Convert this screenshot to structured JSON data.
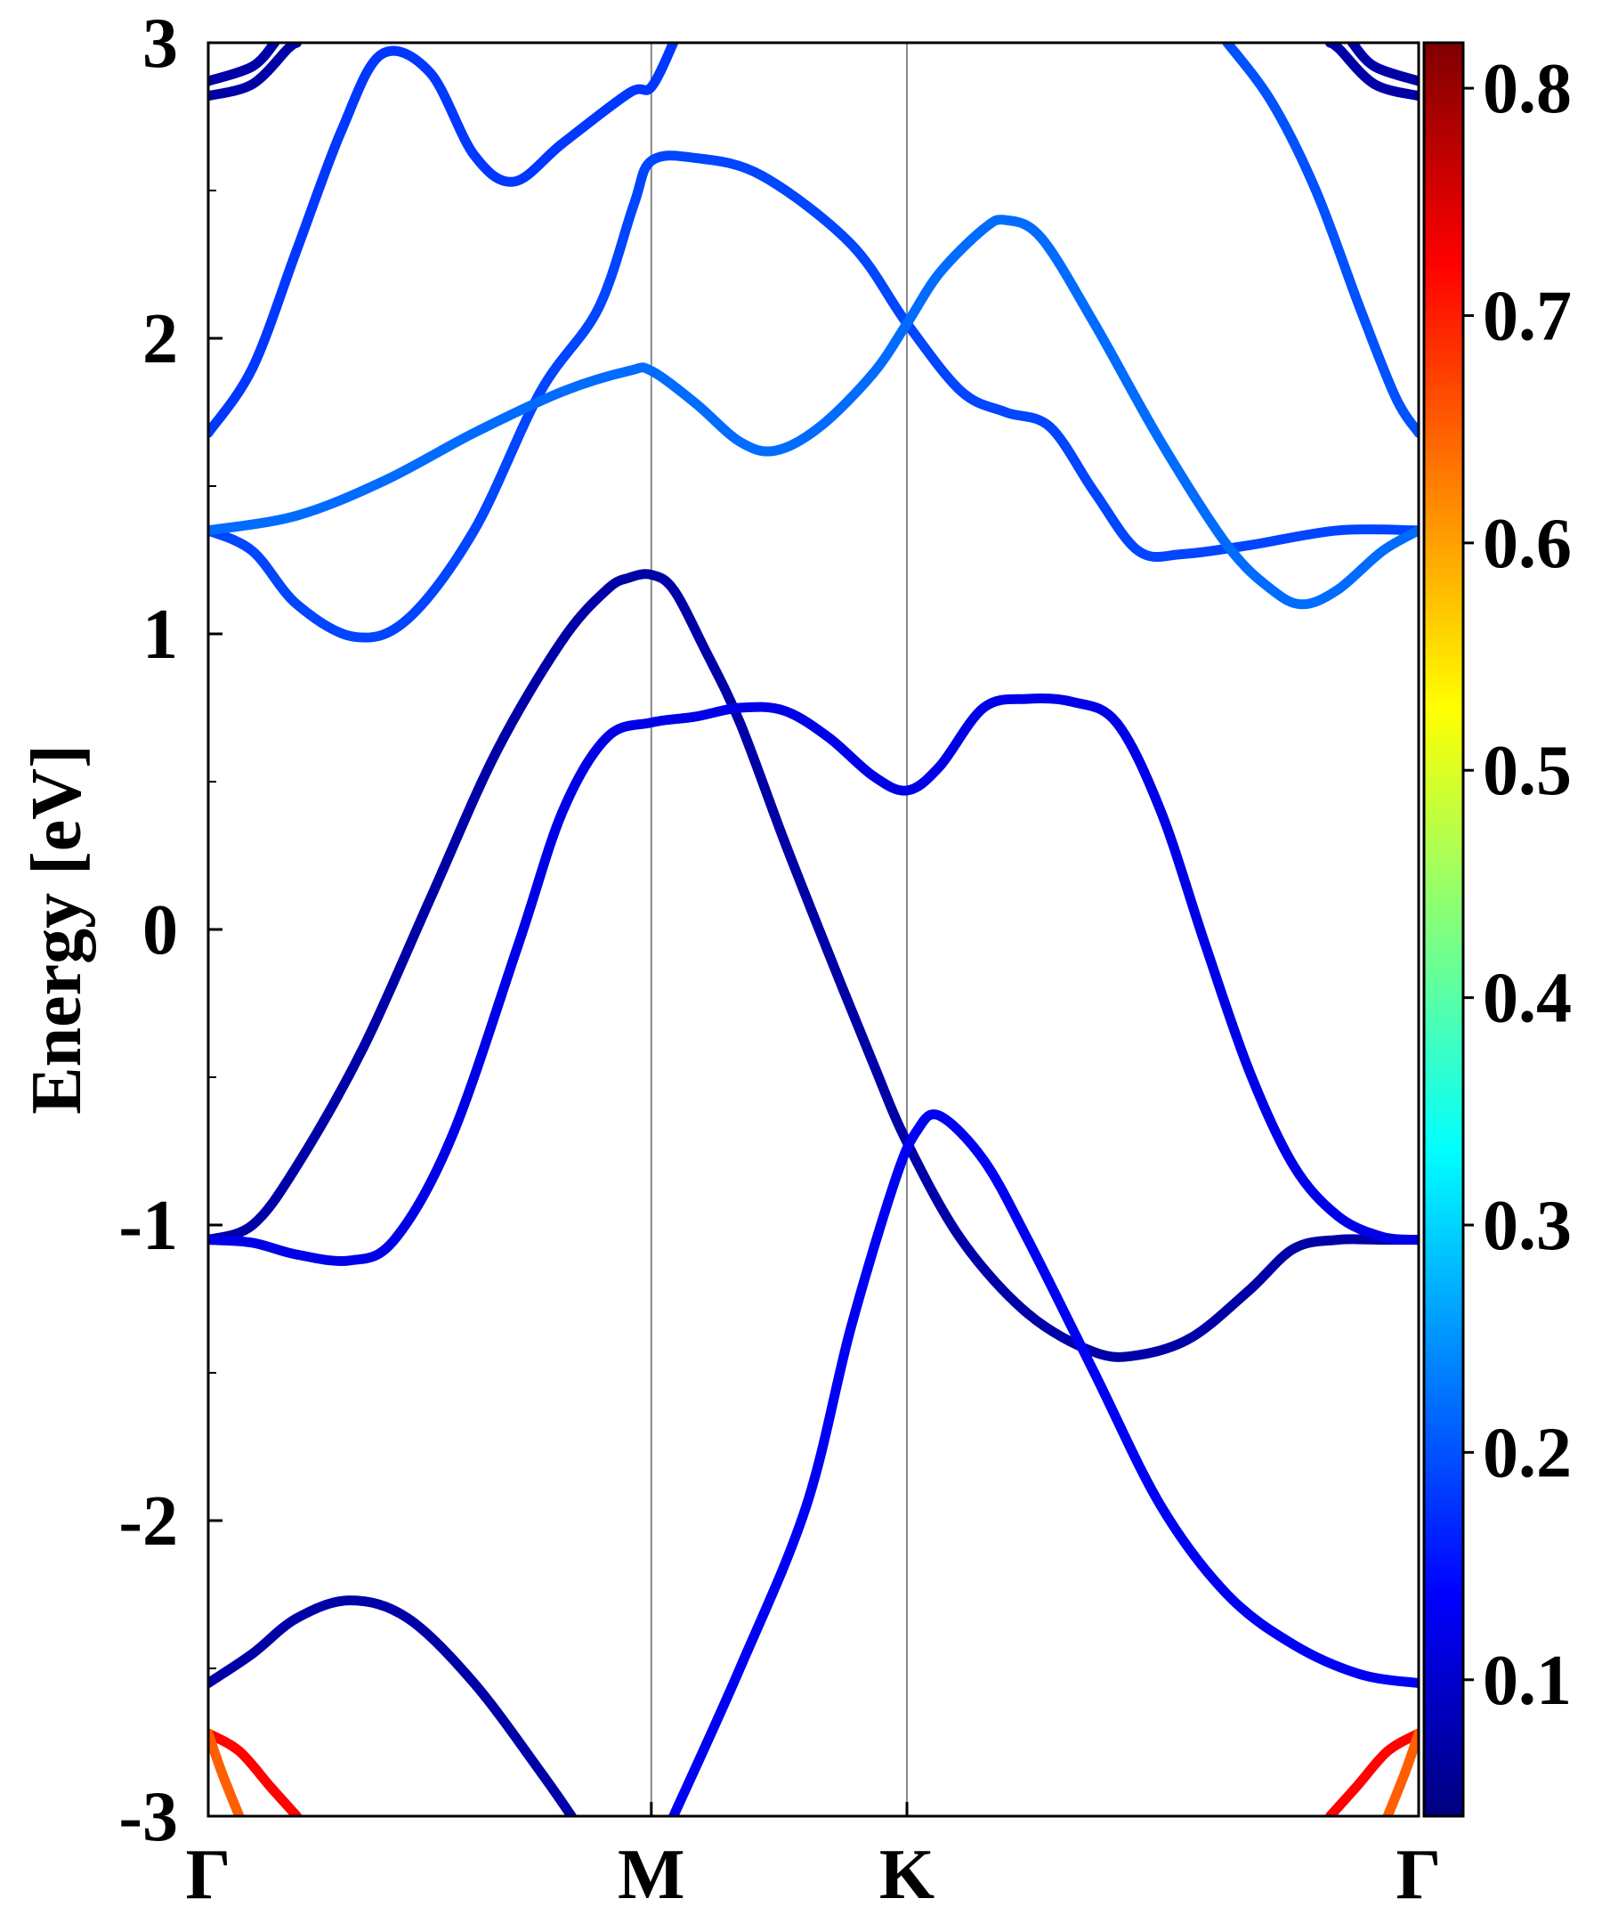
{
  "chart_data": {
    "type": "line",
    "title": "",
    "ylabel": "Energy [eV]",
    "xlabel": "",
    "ylim": [
      -3,
      3
    ],
    "xlim": [
      0,
      2.732
    ],
    "grid": false,
    "yticks": [
      "3",
      "2",
      "1",
      "0",
      "-1",
      "-2",
      "-3"
    ],
    "ytick_values": [
      3,
      2,
      1,
      0,
      -1,
      -2,
      -3
    ],
    "minor_ytick_values": [
      2.5,
      1.5,
      0.5,
      -0.5,
      -1.5,
      -2.5
    ],
    "kpoints": [
      {
        "label": "Γ",
        "x": 0
      },
      {
        "label": "M",
        "x": 1.0
      },
      {
        "label": "K",
        "x": 1.577
      },
      {
        "label": "Γ",
        "x": 2.732
      }
    ],
    "colorbar": {
      "colormap": "jet",
      "range": [
        0.04,
        0.82
      ],
      "ticks": [
        "0.8",
        "0.7",
        "0.6",
        "0.5",
        "0.4",
        "0.3",
        "0.2",
        "0.1"
      ],
      "tick_values": [
        0.8,
        0.7,
        0.6,
        0.5,
        0.4,
        0.3,
        0.2,
        0.1
      ]
    },
    "series": [
      {
        "weight": 0.18,
        "points": [
          [
            0,
            1.68
          ],
          [
            0.1,
            1.9
          ],
          [
            0.2,
            2.3
          ],
          [
            0.3,
            2.7
          ],
          [
            0.39,
            2.96
          ],
          [
            0.5,
            2.9
          ],
          [
            0.6,
            2.62
          ],
          [
            0.69,
            2.53
          ],
          [
            0.8,
            2.66
          ],
          [
            0.95,
            2.83
          ],
          [
            1.0,
            2.85
          ],
          [
            1.05,
            3.0
          ]
        ]
      },
      {
        "weight": 0.19,
        "points": [
          [
            0,
            1.35
          ],
          [
            0.1,
            1.28
          ],
          [
            0.2,
            1.1
          ],
          [
            0.33,
            0.99
          ],
          [
            0.45,
            1.05
          ],
          [
            0.6,
            1.35
          ],
          [
            0.75,
            1.82
          ],
          [
            0.88,
            2.1
          ],
          [
            0.96,
            2.45
          ],
          [
            1.0,
            2.6
          ],
          [
            1.1,
            2.61
          ],
          [
            1.25,
            2.55
          ],
          [
            1.45,
            2.32
          ],
          [
            1.577,
            2.05
          ],
          [
            1.7,
            1.82
          ],
          [
            1.8,
            1.75
          ],
          [
            1.9,
            1.7
          ],
          [
            2.0,
            1.48
          ],
          [
            2.1,
            1.28
          ],
          [
            2.2,
            1.27
          ],
          [
            2.35,
            1.3
          ],
          [
            2.55,
            1.35
          ],
          [
            2.732,
            1.35
          ]
        ]
      },
      {
        "weight": 0.22,
        "points": [
          [
            0,
            1.35
          ],
          [
            0.2,
            1.4
          ],
          [
            0.4,
            1.52
          ],
          [
            0.6,
            1.68
          ],
          [
            0.8,
            1.82
          ],
          [
            0.95,
            1.89
          ],
          [
            1.0,
            1.89
          ],
          [
            1.1,
            1.78
          ],
          [
            1.2,
            1.65
          ],
          [
            1.28,
            1.62
          ],
          [
            1.38,
            1.7
          ],
          [
            1.5,
            1.88
          ],
          [
            1.577,
            2.05
          ],
          [
            1.65,
            2.22
          ],
          [
            1.75,
            2.37
          ],
          [
            1.8,
            2.4
          ],
          [
            1.88,
            2.34
          ],
          [
            2.0,
            2.05
          ],
          [
            2.15,
            1.65
          ],
          [
            2.3,
            1.3
          ],
          [
            2.4,
            1.15
          ],
          [
            2.47,
            1.1
          ],
          [
            2.55,
            1.15
          ],
          [
            2.65,
            1.28
          ],
          [
            2.732,
            1.35
          ]
        ]
      },
      {
        "weight": 0.2,
        "points": [
          [
            2.3,
            3.0
          ],
          [
            2.4,
            2.8
          ],
          [
            2.5,
            2.5
          ],
          [
            2.6,
            2.1
          ],
          [
            2.68,
            1.8
          ],
          [
            2.732,
            1.68
          ]
        ]
      },
      {
        "weight": 0.07,
        "points": [
          [
            0,
            -1.05
          ],
          [
            0.1,
            -1.0
          ],
          [
            0.2,
            -0.8
          ],
          [
            0.35,
            -0.4
          ],
          [
            0.5,
            0.1
          ],
          [
            0.65,
            0.6
          ],
          [
            0.8,
            0.98
          ],
          [
            0.9,
            1.15
          ],
          [
            0.95,
            1.19
          ],
          [
            1.0,
            1.2
          ],
          [
            1.05,
            1.15
          ],
          [
            1.12,
            0.95
          ],
          [
            1.2,
            0.7
          ],
          [
            1.3,
            0.3
          ],
          [
            1.4,
            -0.08
          ],
          [
            1.5,
            -0.45
          ],
          [
            1.577,
            -0.72
          ],
          [
            1.7,
            -1.05
          ],
          [
            1.85,
            -1.3
          ],
          [
            2.0,
            -1.43
          ],
          [
            2.1,
            -1.44
          ],
          [
            2.22,
            -1.38
          ],
          [
            2.35,
            -1.22
          ],
          [
            2.45,
            -1.08
          ],
          [
            2.55,
            -1.05
          ],
          [
            2.65,
            -1.05
          ],
          [
            2.732,
            -1.05
          ]
        ]
      },
      {
        "weight": 0.12,
        "points": [
          [
            0,
            -1.05
          ],
          [
            0.1,
            -1.06
          ],
          [
            0.2,
            -1.1
          ],
          [
            0.32,
            -1.12
          ],
          [
            0.42,
            -1.05
          ],
          [
            0.55,
            -0.7
          ],
          [
            0.7,
            -0.05
          ],
          [
            0.8,
            0.4
          ],
          [
            0.9,
            0.65
          ],
          [
            1.0,
            0.7
          ],
          [
            1.1,
            0.72
          ],
          [
            1.2,
            0.75
          ],
          [
            1.3,
            0.74
          ],
          [
            1.4,
            0.65
          ],
          [
            1.5,
            0.52
          ],
          [
            1.577,
            0.47
          ],
          [
            1.65,
            0.55
          ],
          [
            1.75,
            0.75
          ],
          [
            1.85,
            0.78
          ],
          [
            1.95,
            0.77
          ],
          [
            2.05,
            0.7
          ],
          [
            2.15,
            0.4
          ],
          [
            2.25,
            -0.05
          ],
          [
            2.35,
            -0.48
          ],
          [
            2.45,
            -0.8
          ],
          [
            2.55,
            -0.97
          ],
          [
            2.65,
            -1.04
          ],
          [
            2.732,
            -1.05
          ]
        ]
      },
      {
        "weight": 0.13,
        "points": [
          [
            1.05,
            -3.0
          ],
          [
            1.2,
            -2.5
          ],
          [
            1.35,
            -1.95
          ],
          [
            1.45,
            -1.35
          ],
          [
            1.55,
            -0.85
          ],
          [
            1.6,
            -0.68
          ],
          [
            1.65,
            -0.63
          ],
          [
            1.75,
            -0.78
          ],
          [
            1.85,
            -1.05
          ],
          [
            2.0,
            -1.5
          ],
          [
            2.15,
            -1.95
          ],
          [
            2.3,
            -2.25
          ],
          [
            2.45,
            -2.42
          ],
          [
            2.6,
            -2.52
          ],
          [
            2.732,
            -2.55
          ]
        ]
      },
      {
        "weight": 0.07,
        "points": [
          [
            0,
            -2.55
          ],
          [
            0.1,
            -2.45
          ],
          [
            0.2,
            -2.33
          ],
          [
            0.32,
            -2.27
          ],
          [
            0.45,
            -2.33
          ],
          [
            0.6,
            -2.55
          ],
          [
            0.75,
            -2.85
          ],
          [
            0.82,
            -3.0
          ]
        ]
      },
      {
        "weight": 0.07,
        "points": [
          [
            0,
            2.82
          ],
          [
            0.1,
            2.86
          ],
          [
            0.18,
            2.98
          ],
          [
            0.2,
            3.0
          ]
        ]
      },
      {
        "weight": 0.07,
        "points": [
          [
            0,
            2.87
          ],
          [
            0.1,
            2.92
          ],
          [
            0.15,
            3.0
          ]
        ]
      },
      {
        "weight": 0.07,
        "points": [
          [
            2.732,
            2.82
          ],
          [
            2.632,
            2.86
          ],
          [
            2.552,
            2.98
          ],
          [
            2.532,
            3.0
          ]
        ]
      },
      {
        "weight": 0.07,
        "points": [
          [
            2.732,
            2.87
          ],
          [
            2.632,
            2.92
          ],
          [
            2.582,
            3.0
          ]
        ]
      },
      {
        "weight": 0.72,
        "points": [
          [
            0,
            -2.72
          ],
          [
            0.07,
            -2.78
          ],
          [
            0.14,
            -2.9
          ],
          [
            0.2,
            -3.0
          ]
        ]
      },
      {
        "weight": 0.65,
        "points": [
          [
            0,
            -2.72
          ],
          [
            0.03,
            -2.85
          ],
          [
            0.07,
            -3.0
          ]
        ]
      },
      {
        "weight": 0.72,
        "points": [
          [
            2.732,
            -2.72
          ],
          [
            2.662,
            -2.78
          ],
          [
            2.592,
            -2.9
          ],
          [
            2.532,
            -3.0
          ]
        ]
      },
      {
        "weight": 0.65,
        "points": [
          [
            2.732,
            -2.72
          ],
          [
            2.702,
            -2.85
          ],
          [
            2.662,
            -3.0
          ]
        ]
      }
    ]
  }
}
